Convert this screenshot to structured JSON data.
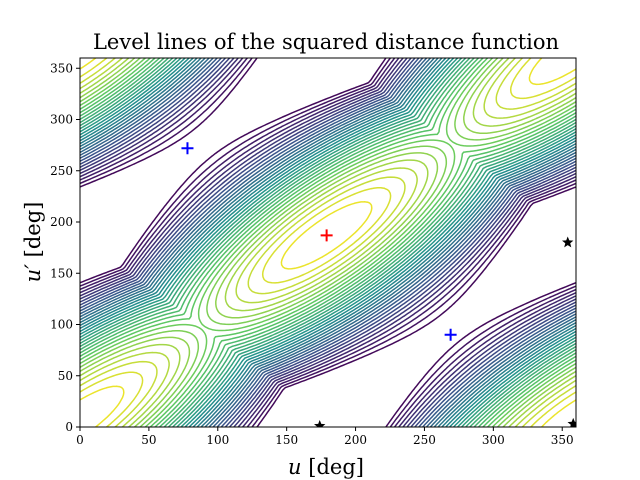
{
  "chart_data": {
    "type": "contour",
    "title": "Level lines of the squared distance function",
    "xlabel": "u [deg]",
    "ylabel": "u′ [deg]",
    "xlabel_parts": {
      "symbol": "u",
      "unit": " [deg]"
    },
    "ylabel_parts": {
      "symbol": "u′",
      "unit": " [deg]"
    },
    "xlim": [
      0,
      360
    ],
    "ylim": [
      0,
      360
    ],
    "xticks": [
      0,
      50,
      100,
      150,
      200,
      250,
      300,
      350
    ],
    "yticks": [
      0,
      50,
      100,
      150,
      200,
      250,
      300,
      350
    ],
    "grid": false,
    "colormap": "viridis",
    "minimum": {
      "u": 179,
      "v": 187
    },
    "markers": [
      {
        "kind": "plus",
        "color": "#ff0000",
        "x": 179,
        "y": 187
      },
      {
        "kind": "plus",
        "color": "#0000ff",
        "x": 78,
        "y": 272
      },
      {
        "kind": "plus",
        "color": "#0000ff",
        "x": 269,
        "y": 90
      },
      {
        "kind": "star",
        "color": "#000000",
        "x": 354,
        "y": 180
      },
      {
        "kind": "star",
        "color": "#000000",
        "x": 174,
        "y": 1
      },
      {
        "kind": "star",
        "color": "#000000",
        "x": 358,
        "y": 3
      }
    ]
  }
}
